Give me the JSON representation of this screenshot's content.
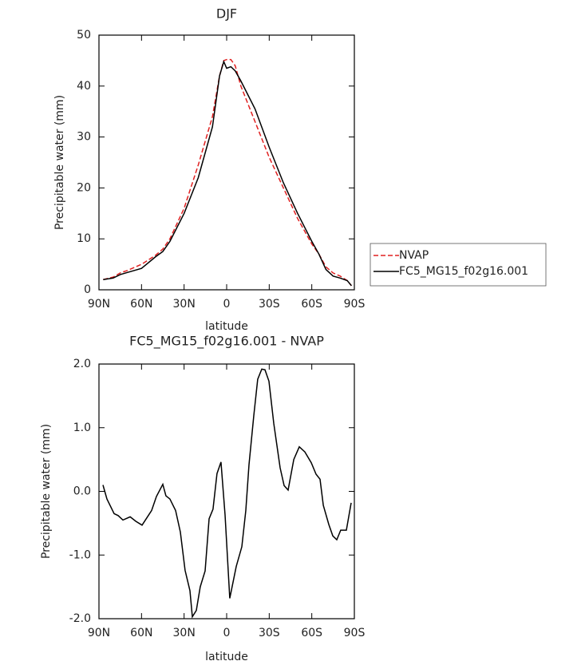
{
  "chart_data": [
    {
      "type": "line",
      "title": "DJF",
      "xlabel": "latitude",
      "ylabel": "Precipitable water (mm)",
      "x": [
        87,
        80,
        75,
        70,
        60,
        50,
        45,
        40,
        30,
        20,
        10,
        5,
        2,
        0,
        -3,
        -6,
        -10,
        -20,
        -30,
        -40,
        -50,
        -60,
        -65,
        -70,
        -75,
        -80,
        -85,
        -88
      ],
      "series": [
        {
          "name": "NVAP",
          "color": "#e02020",
          "line_style": "dashed",
          "values": [
            2,
            2.5,
            3.3,
            3.8,
            5,
            6.8,
            8,
            10,
            16,
            24.5,
            34,
            42,
            45,
            45.2,
            45.2,
            44,
            40,
            33,
            26,
            20,
            14,
            9,
            7,
            4.5,
            3.3,
            2.7,
            1.8,
            0.8
          ]
        },
        {
          "name": "FC5_MG15_f02g16.001",
          "color": "#000000",
          "line_style": "solid",
          "values": [
            2,
            2.3,
            3,
            3.4,
            4.2,
            6.5,
            7.5,
            9.5,
            15,
            22,
            32,
            42,
            44.8,
            43.5,
            43.8,
            43,
            41,
            35.5,
            28,
            21,
            15,
            9.5,
            7,
            4,
            2.7,
            2.3,
            1.8,
            0.8
          ]
        }
      ],
      "xlim": [
        90,
        -90
      ],
      "xticks": [
        {
          "value": 90,
          "label": "90N"
        },
        {
          "value": 60,
          "label": "60N"
        },
        {
          "value": 30,
          "label": "30N"
        },
        0,
        {
          "value": -30,
          "label": "30S"
        },
        {
          "value": -60,
          "label": "60S"
        },
        {
          "value": -90,
          "label": "90S"
        }
      ],
      "ylim": [
        0,
        50
      ],
      "yticks": [
        0,
        10,
        20,
        30,
        40,
        50
      ],
      "legend": "right"
    },
    {
      "type": "line",
      "title": "FC5_MG15_f02g16.001 - NVAP",
      "xlabel": "latitude",
      "ylabel": "Precipitable water (mm)",
      "x": [
        87.2,
        84.4,
        79.3,
        76.5,
        73.1,
        68,
        64,
        59.6,
        52.9,
        49.5,
        45,
        42.8,
        40,
        36,
        32.6,
        29.3,
        25.9,
        24.2,
        21.4,
        18.6,
        15.2,
        12.4,
        9.6,
        6.8,
        4,
        1.1,
        -2.2,
        -6.75,
        -10.7,
        -13.5,
        -15.75,
        -19.1,
        -21.9,
        -24.75,
        -27,
        -29.8,
        -33.2,
        -37.7,
        -40.5,
        -43.3,
        -47.3,
        -51.2,
        -55.1,
        -59.6,
        -63,
        -65.8,
        -68.1,
        -72,
        -74.8,
        -77.6,
        -80.4,
        -84.4,
        -87.75
      ],
      "series": [
        {
          "color": "#000000",
          "line_style": "solid",
          "values": [
            0.1,
            -0.12,
            -0.35,
            -0.38,
            -0.45,
            -0.4,
            -0.47,
            -0.53,
            -0.3,
            -0.08,
            0.11,
            -0.07,
            -0.12,
            -0.3,
            -0.64,
            -1.24,
            -1.56,
            -1.97,
            -1.87,
            -1.5,
            -1.25,
            -0.43,
            -0.28,
            0.28,
            0.46,
            -0.37,
            -1.68,
            -1.18,
            -0.87,
            -0.3,
            0.42,
            1.19,
            1.76,
            1.92,
            1.91,
            1.73,
            1.07,
            0.37,
            0.09,
            0.02,
            0.5,
            0.7,
            0.62,
            0.45,
            0.27,
            0.19,
            -0.22,
            -0.52,
            -0.7,
            -0.76,
            -0.61,
            -0.61,
            -0.18
          ]
        }
      ],
      "xlim": [
        90,
        -90
      ],
      "xticks": [
        {
          "value": 90,
          "label": "90N"
        },
        {
          "value": 60,
          "label": "60N"
        },
        {
          "value": 30,
          "label": "30N"
        },
        0,
        {
          "value": -30,
          "label": "30S"
        },
        {
          "value": -60,
          "label": "60S"
        },
        {
          "value": -90,
          "label": "90S"
        }
      ],
      "ylim": [
        -2,
        2
      ],
      "yticks": [
        {
          "value": -2,
          "label": "-2.0"
        },
        {
          "value": -1,
          "label": "-1.0"
        },
        {
          "value": 0,
          "label": "0.0"
        },
        {
          "value": 1,
          "label": "1.0"
        },
        {
          "value": 2,
          "label": "2.0"
        }
      ]
    }
  ]
}
